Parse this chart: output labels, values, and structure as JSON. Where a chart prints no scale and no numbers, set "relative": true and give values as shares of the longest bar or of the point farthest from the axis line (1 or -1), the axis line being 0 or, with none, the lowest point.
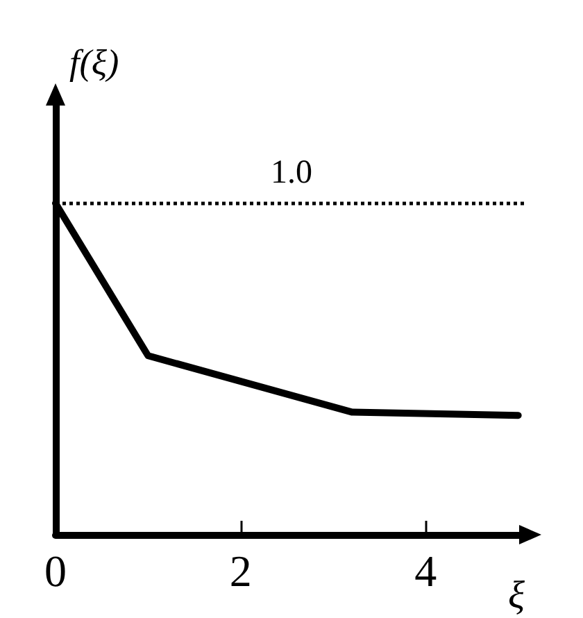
{
  "chart_data": {
    "type": "line",
    "xlabel": "ξ",
    "ylabel": "f(ξ)",
    "relative": true,
    "xlim": [
      0,
      5.1
    ],
    "xticks": [
      0,
      2,
      4
    ],
    "series": [
      {
        "color": "#000000",
        "x": [
          0,
          1.0,
          3.2,
          5.0
        ],
        "values": [
          1,
          0.54,
          0.37,
          0.36
        ]
      }
    ],
    "ref_lines": [
      {
        "axis": "y",
        "value": 1,
        "label": "1.0",
        "line_style": "dotted",
        "color": "#000000"
      }
    ],
    "grid": false,
    "marker": "none",
    "line_style": "solid"
  }
}
